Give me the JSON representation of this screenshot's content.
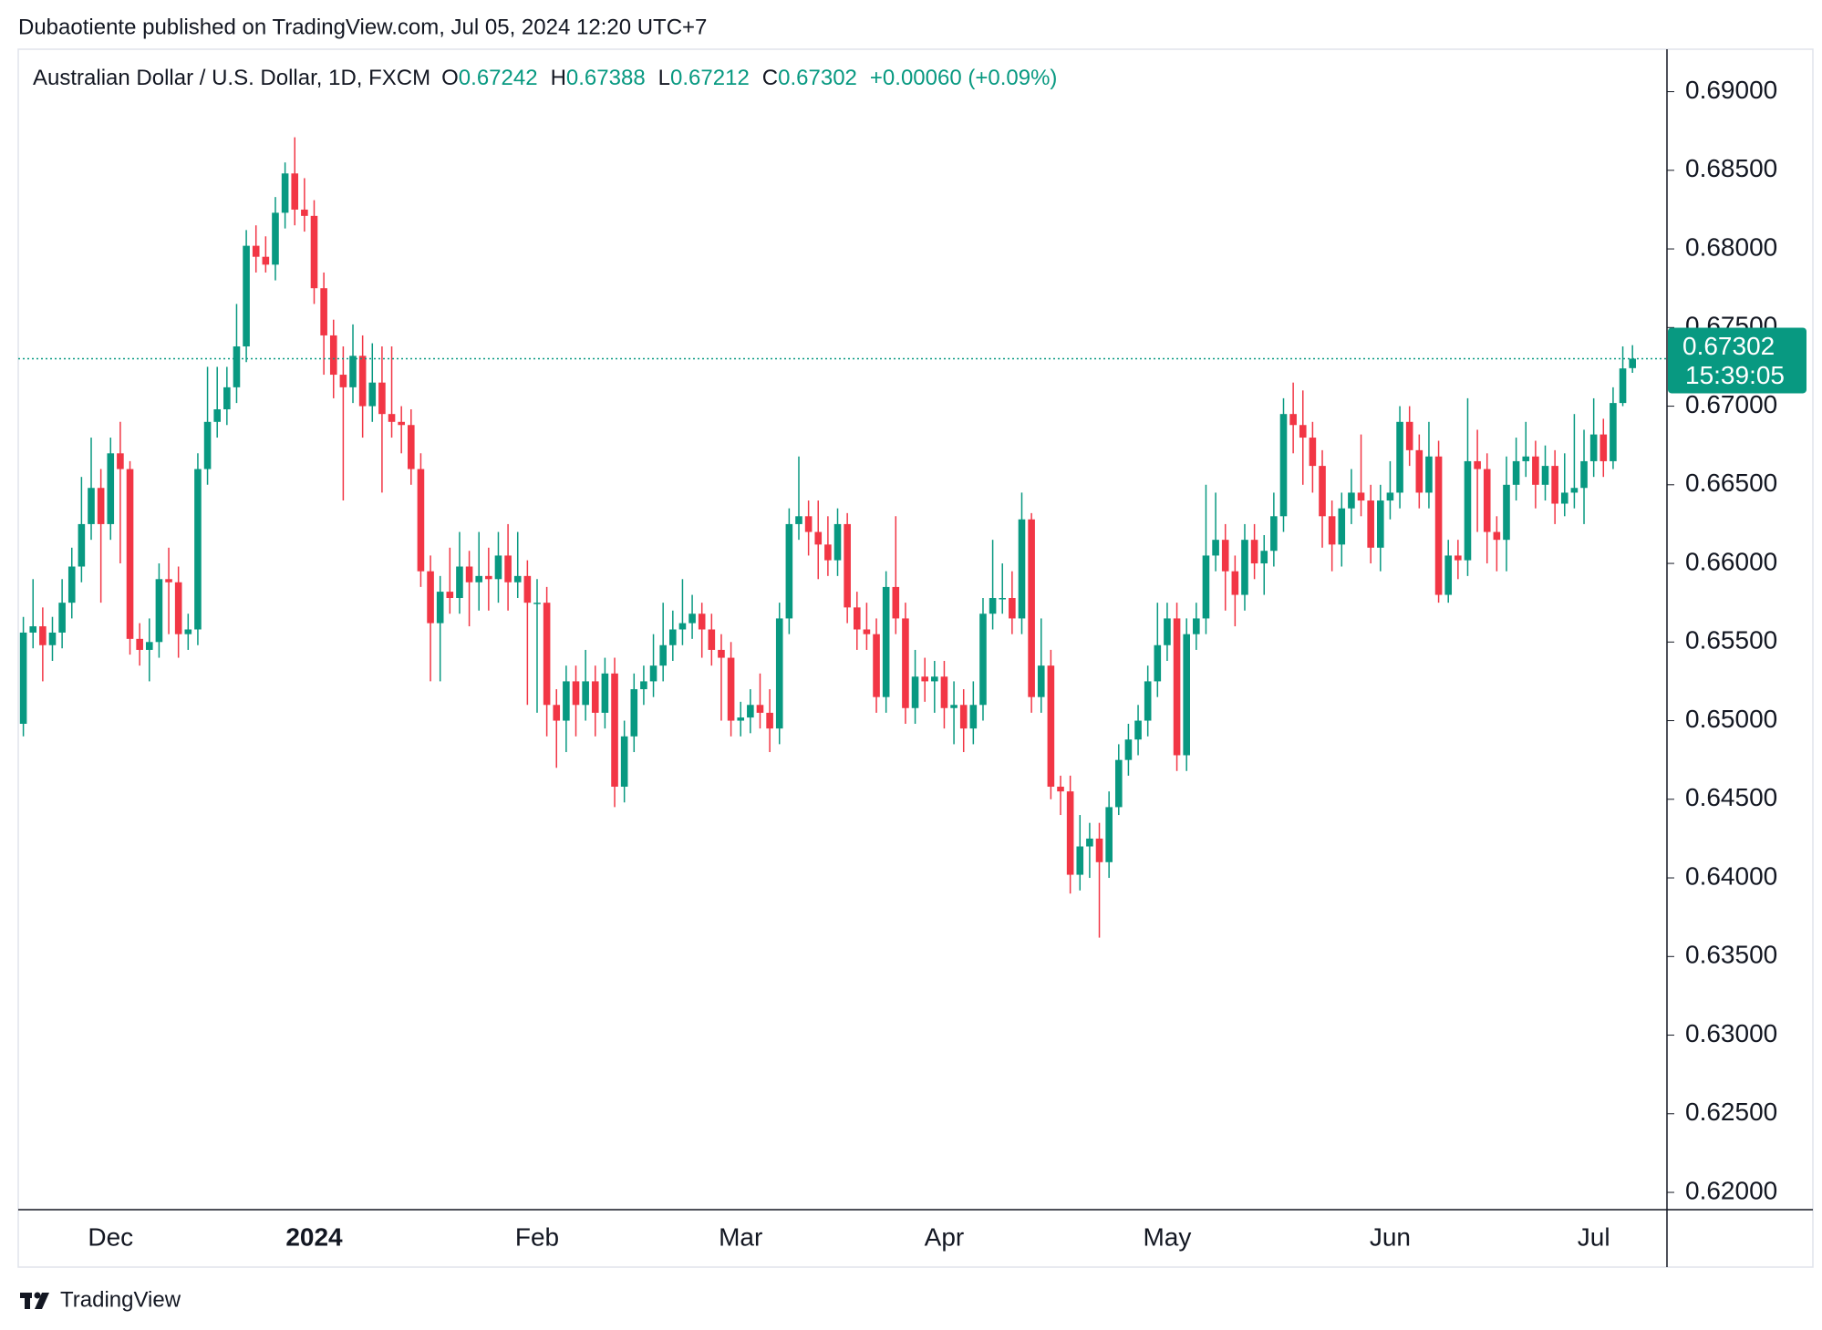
{
  "chart_data": {
    "type": "candlestick",
    "header": "Dubaotiente published on TradingView.com, Jul 05, 2024 12:20 UTC+7",
    "symbol": "Australian Dollar / U.S. Dollar, 1D, FXCM",
    "open_label": "O",
    "high_label": "H",
    "low_label": "L",
    "close_label": "C",
    "change": "+0.00060 (+0.09%)",
    "countdown": "15:39:05",
    "brand": "TradingView",
    "up_color": "#089981",
    "down_color": "#f23645",
    "ylim": [
      0.6189,
      0.6927
    ],
    "yticks": [
      {
        "value": 0.62,
        "label": "0.62000"
      },
      {
        "value": 0.625,
        "label": "0.62500"
      },
      {
        "value": 0.63,
        "label": "0.63000"
      },
      {
        "value": 0.635,
        "label": "0.63500"
      },
      {
        "value": 0.64,
        "label": "0.64000"
      },
      {
        "value": 0.645,
        "label": "0.64500"
      },
      {
        "value": 0.65,
        "label": "0.65000"
      },
      {
        "value": 0.655,
        "label": "0.65500"
      },
      {
        "value": 0.66,
        "label": "0.66000"
      },
      {
        "value": 0.665,
        "label": "0.66500"
      },
      {
        "value": 0.67,
        "label": "0.67000"
      },
      {
        "value": 0.675,
        "label": "0.67500"
      },
      {
        "value": 0.68,
        "label": "0.68000"
      },
      {
        "value": 0.685,
        "label": "0.68500"
      },
      {
        "value": 0.69,
        "label": "0.69000"
      }
    ],
    "categories": [
      null,
      null,
      null,
      null,
      null,
      null,
      null,
      null,
      null,
      "Dec",
      null,
      null,
      null,
      null,
      null,
      null,
      null,
      null,
      null,
      null,
      null,
      null,
      null,
      null,
      null,
      null,
      null,
      null,
      null,
      null,
      "2024",
      null,
      null,
      null,
      null,
      null,
      null,
      null,
      null,
      null,
      null,
      null,
      null,
      null,
      null,
      null,
      null,
      null,
      null,
      null,
      null,
      null,
      null,
      "Feb",
      null,
      null,
      null,
      null,
      null,
      null,
      null,
      null,
      null,
      null,
      null,
      null,
      null,
      null,
      null,
      null,
      null,
      null,
      null,
      null,
      "Mar",
      null,
      null,
      null,
      null,
      null,
      null,
      null,
      null,
      null,
      null,
      null,
      null,
      null,
      null,
      null,
      null,
      null,
      null,
      null,
      null,
      "Apr",
      null,
      null,
      null,
      null,
      null,
      null,
      null,
      null,
      null,
      null,
      null,
      null,
      null,
      null,
      null,
      null,
      null,
      null,
      null,
      null,
      null,
      null,
      "May",
      null,
      null,
      null,
      null,
      null,
      null,
      null,
      null,
      null,
      null,
      null,
      null,
      null,
      null,
      null,
      null,
      null,
      null,
      null,
      null,
      null,
      null,
      "Jun",
      null,
      null,
      null,
      null,
      null,
      null,
      null,
      null,
      null,
      null,
      null,
      null,
      null,
      null,
      null,
      null,
      null,
      null,
      null,
      null,
      "Jul",
      null,
      null,
      null,
      null
    ],
    "open": [
      0.6498,
      0.6556,
      0.656,
      0.6548,
      0.6556,
      0.6575,
      0.6598,
      0.6625,
      0.6648,
      0.6625,
      0.667,
      0.666,
      0.6552,
      0.6545,
      0.655,
      0.659,
      0.6588,
      0.6555,
      0.6558,
      0.666,
      0.669,
      0.6698,
      0.6712,
      0.6738,
      0.6802,
      0.6795,
      0.679,
      0.6823,
      0.6848,
      0.6825,
      0.6821,
      0.6775,
      0.6745,
      0.672,
      0.6712,
      0.6732,
      0.67,
      0.6715,
      0.6695,
      0.669,
      0.6688,
      0.666,
      0.6595,
      0.6562,
      0.6582,
      0.6578,
      0.6598,
      0.6588,
      0.6592,
      0.659,
      0.6605,
      0.6588,
      0.6592,
      0.6575,
      0.6575,
      0.651,
      0.65,
      0.6525,
      0.651,
      0.6525,
      0.6505,
      0.653,
      0.6458,
      0.649,
      0.652,
      0.6525,
      0.6535,
      0.6548,
      0.6558,
      0.6562,
      0.6568,
      0.6558,
      0.6545,
      0.654,
      0.65,
      0.6502,
      0.651,
      0.6505,
      0.6495,
      0.6565,
      0.6625,
      0.663,
      0.662,
      0.6612,
      0.6602,
      0.6625,
      0.6572,
      0.6558,
      0.6555,
      0.6515,
      0.6585,
      0.6565,
      0.6508,
      0.6528,
      0.6525,
      0.6528,
      0.6508,
      0.651,
      0.6495,
      0.651,
      0.6568,
      0.6578,
      0.6578,
      0.6565,
      0.6628,
      0.6515,
      0.6535,
      0.6458,
      0.6455,
      0.6402,
      0.642,
      0.6425,
      0.641,
      0.6445,
      0.6475,
      0.6488,
      0.65,
      0.6525,
      0.6548,
      0.6565,
      0.6478,
      0.6555,
      0.6565,
      0.6605,
      0.6615,
      0.6595,
      0.658,
      0.6615,
      0.66,
      0.6608,
      0.663,
      0.6695,
      0.6688,
      0.668,
      0.6662,
      0.663,
      0.6612,
      0.6635,
      0.6645,
      0.664,
      0.661,
      0.664,
      0.6645,
      0.669,
      0.6672,
      0.6645,
      0.6668,
      0.658,
      0.6605,
      0.6602,
      0.6665,
      0.666,
      0.662,
      0.6615,
      0.665,
      0.6665,
      0.6668,
      0.665,
      0.6662,
      0.6638,
      0.6645,
      0.6648,
      0.6665,
      0.6682,
      0.6665,
      0.6702,
      0.67242
    ],
    "high": [
      0.6566,
      0.659,
      0.6572,
      0.6566,
      0.659,
      0.661,
      0.6655,
      0.668,
      0.666,
      0.668,
      0.669,
      0.6665,
      0.6562,
      0.6565,
      0.66,
      0.661,
      0.6598,
      0.6568,
      0.667,
      0.6725,
      0.6725,
      0.6725,
      0.6765,
      0.6812,
      0.6815,
      0.6808,
      0.6833,
      0.6855,
      0.6871,
      0.6845,
      0.6831,
      0.6785,
      0.6755,
      0.6738,
      0.6752,
      0.6745,
      0.674,
      0.6738,
      0.6738,
      0.67,
      0.6698,
      0.667,
      0.6605,
      0.6592,
      0.661,
      0.662,
      0.6608,
      0.662,
      0.661,
      0.662,
      0.6625,
      0.662,
      0.6602,
      0.659,
      0.6585,
      0.652,
      0.6535,
      0.6535,
      0.6545,
      0.6535,
      0.654,
      0.654,
      0.65,
      0.653,
      0.6535,
      0.6555,
      0.6575,
      0.657,
      0.659,
      0.658,
      0.6575,
      0.6568,
      0.6555,
      0.655,
      0.6512,
      0.652,
      0.653,
      0.652,
      0.6575,
      0.6635,
      0.6668,
      0.664,
      0.664,
      0.663,
      0.6635,
      0.6632,
      0.6582,
      0.6575,
      0.6565,
      0.6595,
      0.663,
      0.6575,
      0.6545,
      0.654,
      0.6538,
      0.6538,
      0.6525,
      0.652,
      0.6525,
      0.6578,
      0.6615,
      0.66,
      0.6595,
      0.6645,
      0.6632,
      0.6565,
      0.6545,
      0.6465,
      0.6465,
      0.644,
      0.6435,
      0.6435,
      0.6455,
      0.6485,
      0.6498,
      0.651,
      0.6535,
      0.6575,
      0.6575,
      0.6575,
      0.6565,
      0.6575,
      0.665,
      0.6645,
      0.6625,
      0.6605,
      0.6625,
      0.6625,
      0.6618,
      0.6645,
      0.6705,
      0.6715,
      0.671,
      0.669,
      0.6672,
      0.664,
      0.6645,
      0.666,
      0.6682,
      0.665,
      0.665,
      0.6665,
      0.67,
      0.67,
      0.6682,
      0.669,
      0.6678,
      0.6615,
      0.6615,
      0.6705,
      0.6685,
      0.667,
      0.663,
      0.6668,
      0.668,
      0.669,
      0.6678,
      0.6675,
      0.6672,
      0.667,
      0.6695,
      0.6685,
      0.6705,
      0.6692,
      0.6712,
      0.6738,
      0.67388
    ],
    "low": [
      0.649,
      0.6546,
      0.6525,
      0.6538,
      0.6546,
      0.6565,
      0.6588,
      0.6615,
      0.6575,
      0.6615,
      0.66,
      0.6542,
      0.6535,
      0.6525,
      0.654,
      0.6555,
      0.654,
      0.6545,
      0.6548,
      0.665,
      0.668,
      0.6688,
      0.6702,
      0.6728,
      0.6785,
      0.6785,
      0.678,
      0.6813,
      0.6815,
      0.6811,
      0.6765,
      0.672,
      0.6705,
      0.664,
      0.6702,
      0.668,
      0.669,
      0.6645,
      0.668,
      0.667,
      0.665,
      0.6585,
      0.6525,
      0.6525,
      0.6568,
      0.6568,
      0.656,
      0.657,
      0.657,
      0.6575,
      0.657,
      0.6578,
      0.651,
      0.6505,
      0.649,
      0.647,
      0.648,
      0.649,
      0.65,
      0.649,
      0.6495,
      0.6445,
      0.6448,
      0.648,
      0.651,
      0.6515,
      0.6525,
      0.6538,
      0.6548,
      0.6552,
      0.654,
      0.6535,
      0.65,
      0.649,
      0.649,
      0.6492,
      0.6495,
      0.648,
      0.6485,
      0.6555,
      0.6615,
      0.6605,
      0.659,
      0.6592,
      0.6592,
      0.6562,
      0.6545,
      0.6545,
      0.6505,
      0.6505,
      0.6555,
      0.6498,
      0.6498,
      0.6512,
      0.6505,
      0.6495,
      0.6485,
      0.648,
      0.6485,
      0.65,
      0.6558,
      0.6568,
      0.6555,
      0.6555,
      0.6505,
      0.6505,
      0.645,
      0.644,
      0.639,
      0.6392,
      0.64,
      0.6362,
      0.64,
      0.644,
      0.6465,
      0.6478,
      0.649,
      0.6515,
      0.6538,
      0.6468,
      0.6468,
      0.6545,
      0.6555,
      0.6595,
      0.657,
      0.656,
      0.657,
      0.659,
      0.658,
      0.6598,
      0.662,
      0.667,
      0.665,
      0.6645,
      0.661,
      0.6595,
      0.6598,
      0.6625,
      0.663,
      0.66,
      0.6595,
      0.6628,
      0.6635,
      0.6662,
      0.6635,
      0.6635,
      0.6575,
      0.6575,
      0.659,
      0.6592,
      0.662,
      0.66,
      0.6595,
      0.6595,
      0.664,
      0.6655,
      0.6635,
      0.664,
      0.6625,
      0.663,
      0.6635,
      0.6625,
      0.6655,
      0.6655,
      0.666,
      0.67,
      0.67212
    ],
    "close": [
      0.6556,
      0.656,
      0.6548,
      0.6556,
      0.6575,
      0.6598,
      0.6625,
      0.6648,
      0.6625,
      0.667,
      0.666,
      0.6552,
      0.6545,
      0.655,
      0.659,
      0.6588,
      0.6555,
      0.6558,
      0.666,
      0.669,
      0.6698,
      0.6712,
      0.6738,
      0.6802,
      0.6795,
      0.679,
      0.6823,
      0.6848,
      0.6825,
      0.6821,
      0.6775,
      0.6745,
      0.672,
      0.6712,
      0.6732,
      0.67,
      0.6715,
      0.6695,
      0.669,
      0.6688,
      0.666,
      0.6595,
      0.6562,
      0.6582,
      0.6578,
      0.6598,
      0.6588,
      0.6592,
      0.659,
      0.6605,
      0.6588,
      0.6592,
      0.6575,
      0.6575,
      0.651,
      0.65,
      0.6525,
      0.651,
      0.6525,
      0.6505,
      0.653,
      0.6458,
      0.649,
      0.652,
      0.6525,
      0.6535,
      0.6548,
      0.6558,
      0.6562,
      0.6568,
      0.6558,
      0.6545,
      0.654,
      0.65,
      0.6502,
      0.651,
      0.6505,
      0.6495,
      0.6565,
      0.6625,
      0.663,
      0.662,
      0.6612,
      0.6602,
      0.6625,
      0.6572,
      0.6558,
      0.6555,
      0.6515,
      0.6585,
      0.6565,
      0.6508,
      0.6528,
      0.6525,
      0.6528,
      0.6508,
      0.651,
      0.6495,
      0.651,
      0.6568,
      0.6578,
      0.6578,
      0.6565,
      0.6628,
      0.6515,
      0.6535,
      0.6458,
      0.6455,
      0.6402,
      0.642,
      0.6425,
      0.641,
      0.6445,
      0.6475,
      0.6488,
      0.65,
      0.6525,
      0.6548,
      0.6565,
      0.6478,
      0.6555,
      0.6565,
      0.6605,
      0.6615,
      0.6595,
      0.658,
      0.6615,
      0.66,
      0.6608,
      0.663,
      0.6695,
      0.6688,
      0.668,
      0.6662,
      0.663,
      0.6612,
      0.6635,
      0.6645,
      0.664,
      0.661,
      0.664,
      0.6645,
      0.669,
      0.6672,
      0.6645,
      0.6668,
      0.658,
      0.6605,
      0.6602,
      0.6665,
      0.666,
      0.662,
      0.6615,
      0.665,
      0.6665,
      0.6668,
      0.665,
      0.6662,
      0.6638,
      0.6645,
      0.6648,
      0.6665,
      0.6682,
      0.6665,
      0.6702,
      0.6724,
      0.67302
    ]
  }
}
